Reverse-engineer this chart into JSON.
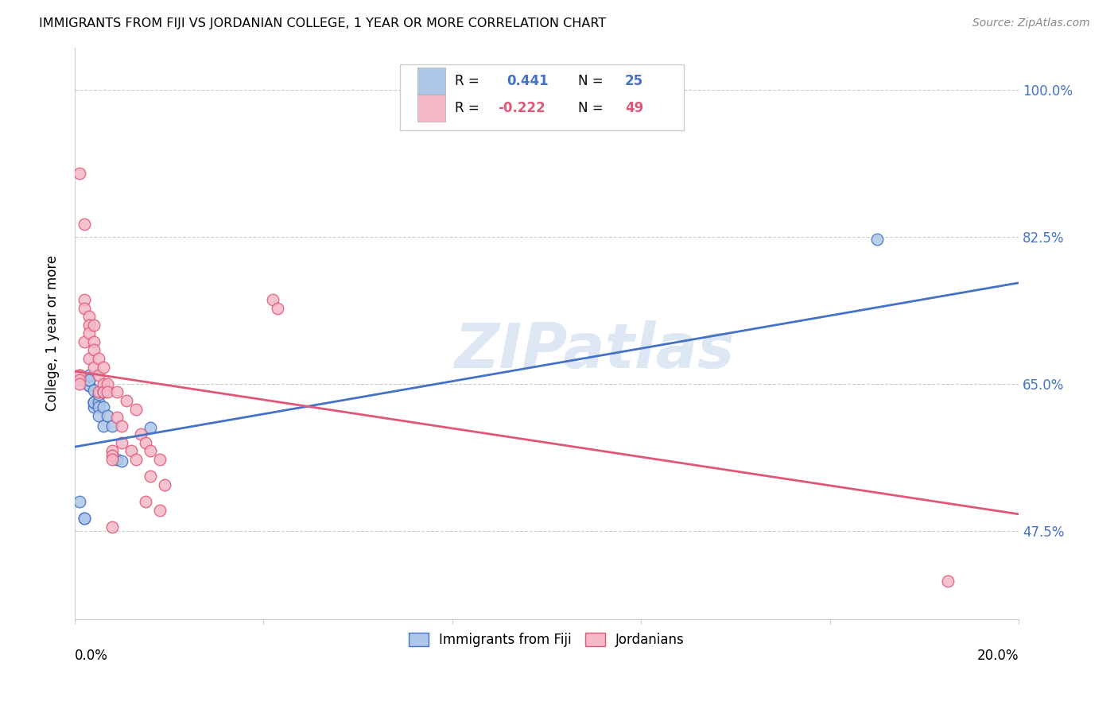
{
  "title": "IMMIGRANTS FROM FIJI VS JORDANIAN COLLEGE, 1 YEAR OR MORE CORRELATION CHART",
  "source": "Source: ZipAtlas.com",
  "ylabel": "College, 1 year or more",
  "yticks": [
    "47.5%",
    "65.0%",
    "82.5%",
    "100.0%"
  ],
  "ytick_vals": [
    0.475,
    0.65,
    0.825,
    1.0
  ],
  "xmin": 0.0,
  "xmax": 0.2,
  "ymin": 0.37,
  "ymax": 1.05,
  "fiji_color": "#aec6e8",
  "fiji_color_line": "#4472c4",
  "jordan_color": "#f4b8c8",
  "jordan_color_line": "#e05878",
  "fiji_R": 0.441,
  "fiji_N": 25,
  "jordan_R": -0.222,
  "jordan_N": 49,
  "watermark": "ZIPatlas",
  "fiji_line_x0": 0.0,
  "fiji_line_y0": 0.575,
  "fiji_line_x1": 0.2,
  "fiji_line_y1": 0.77,
  "jordan_line_x0": 0.0,
  "jordan_line_y0": 0.665,
  "jordan_line_x1": 0.2,
  "jordan_line_y1": 0.495,
  "fiji_x": [
    0.001,
    0.002,
    0.002,
    0.003,
    0.003,
    0.003,
    0.003,
    0.003,
    0.004,
    0.004,
    0.004,
    0.004,
    0.004,
    0.005,
    0.005,
    0.005,
    0.005,
    0.006,
    0.006,
    0.007,
    0.008,
    0.009,
    0.01,
    0.016,
    0.17
  ],
  "fiji_y": [
    0.51,
    0.49,
    0.49,
    0.648,
    0.648,
    0.655,
    0.66,
    0.655,
    0.622,
    0.628,
    0.628,
    0.628,
    0.642,
    0.628,
    0.638,
    0.622,
    0.612,
    0.622,
    0.6,
    0.612,
    0.6,
    0.56,
    0.558,
    0.598,
    0.822
  ],
  "jordan_x": [
    0.001,
    0.001,
    0.001,
    0.001,
    0.002,
    0.002,
    0.002,
    0.002,
    0.003,
    0.003,
    0.003,
    0.003,
    0.004,
    0.004,
    0.004,
    0.004,
    0.005,
    0.005,
    0.005,
    0.006,
    0.006,
    0.006,
    0.006,
    0.007,
    0.007,
    0.008,
    0.008,
    0.008,
    0.008,
    0.009,
    0.009,
    0.01,
    0.01,
    0.011,
    0.012,
    0.013,
    0.013,
    0.014,
    0.015,
    0.015,
    0.016,
    0.016,
    0.018,
    0.018,
    0.019,
    0.042,
    0.043,
    0.185,
    0.001
  ],
  "jordan_y": [
    0.66,
    0.66,
    0.655,
    0.65,
    0.84,
    0.75,
    0.74,
    0.7,
    0.73,
    0.72,
    0.71,
    0.68,
    0.72,
    0.7,
    0.69,
    0.67,
    0.68,
    0.66,
    0.64,
    0.67,
    0.65,
    0.64,
    0.64,
    0.65,
    0.64,
    0.57,
    0.565,
    0.56,
    0.48,
    0.64,
    0.61,
    0.6,
    0.58,
    0.63,
    0.57,
    0.62,
    0.56,
    0.59,
    0.58,
    0.51,
    0.57,
    0.54,
    0.5,
    0.56,
    0.53,
    0.75,
    0.74,
    0.415,
    0.9
  ]
}
